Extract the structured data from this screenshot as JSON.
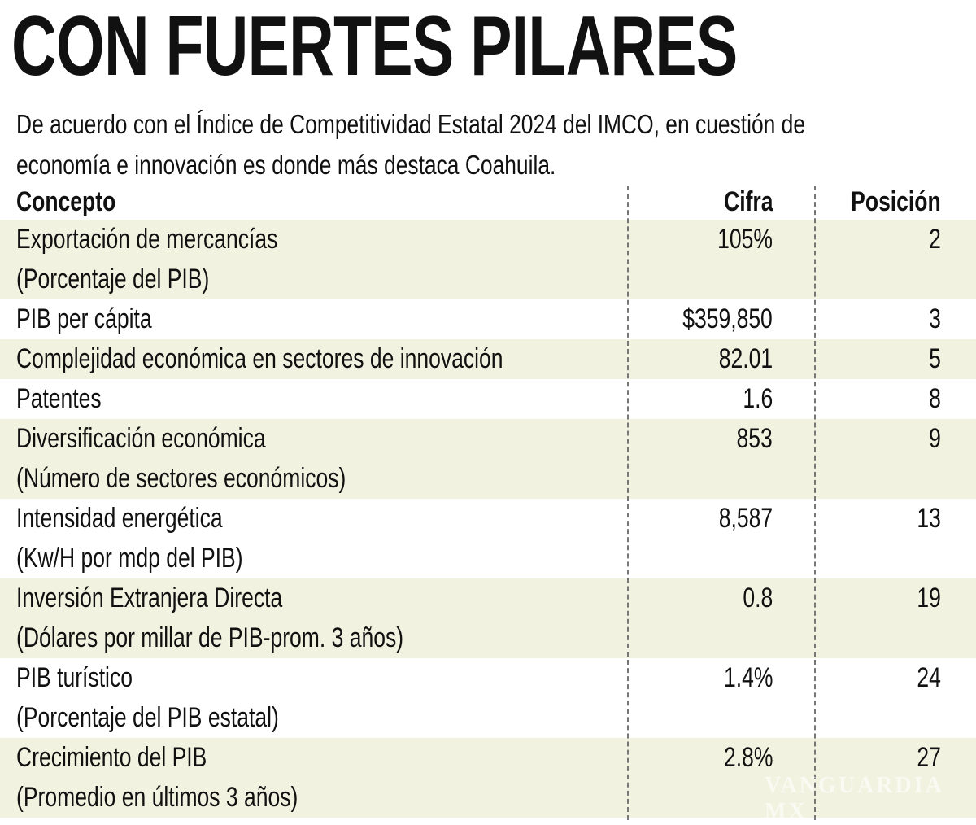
{
  "title": "CON FUERTES PILARES",
  "subtitle_lines": [
    "De acuerdo con el Índice de Competitividad Estatal 2024 del IMCO, en cuestión de",
    "economía e innovación es donde más destaca Coahuila."
  ],
  "watermark": "VANGUARDIA MX",
  "colors": {
    "row_shade": "#f1f2df",
    "divider": "#777777"
  },
  "chart_data": {
    "type": "table",
    "title": "CON FUERTES PILARES",
    "columns": [
      "Concepto",
      "Cifra",
      "Posición"
    ],
    "rows": [
      {
        "concepto": "Exportación de mercancías",
        "nota": "(Porcentaje del PIB)",
        "cifra": "105%",
        "posicion": "2"
      },
      {
        "concepto": "PIB per cápita",
        "nota": "",
        "cifra": "$359,850",
        "posicion": "3"
      },
      {
        "concepto": "Complejidad económica en sectores de innovación",
        "nota": "",
        "cifra": "82.01",
        "posicion": "5"
      },
      {
        "concepto": "Patentes",
        "nota": "",
        "cifra": "1.6",
        "posicion": "8"
      },
      {
        "concepto": "Diversificación económica",
        "nota": "(Número de sectores económicos)",
        "cifra": "853",
        "posicion": "9"
      },
      {
        "concepto": "Intensidad energética",
        "nota": "(Kw/H por mdp del PIB)",
        "cifra": "8,587",
        "posicion": "13"
      },
      {
        "concepto": "Inversión Extranjera Directa",
        "nota": "(Dólares por millar de PIB-prom. 3 años)",
        "cifra": "0.8",
        "posicion": "19"
      },
      {
        "concepto": "PIB turístico",
        "nota": "(Porcentaje del PIB estatal)",
        "cifra": "1.4%",
        "posicion": "24"
      },
      {
        "concepto": "Crecimiento del PIB",
        "nota": "(Promedio en últimos 3 años)",
        "cifra": "2.8%",
        "posicion": "27"
      }
    ]
  }
}
